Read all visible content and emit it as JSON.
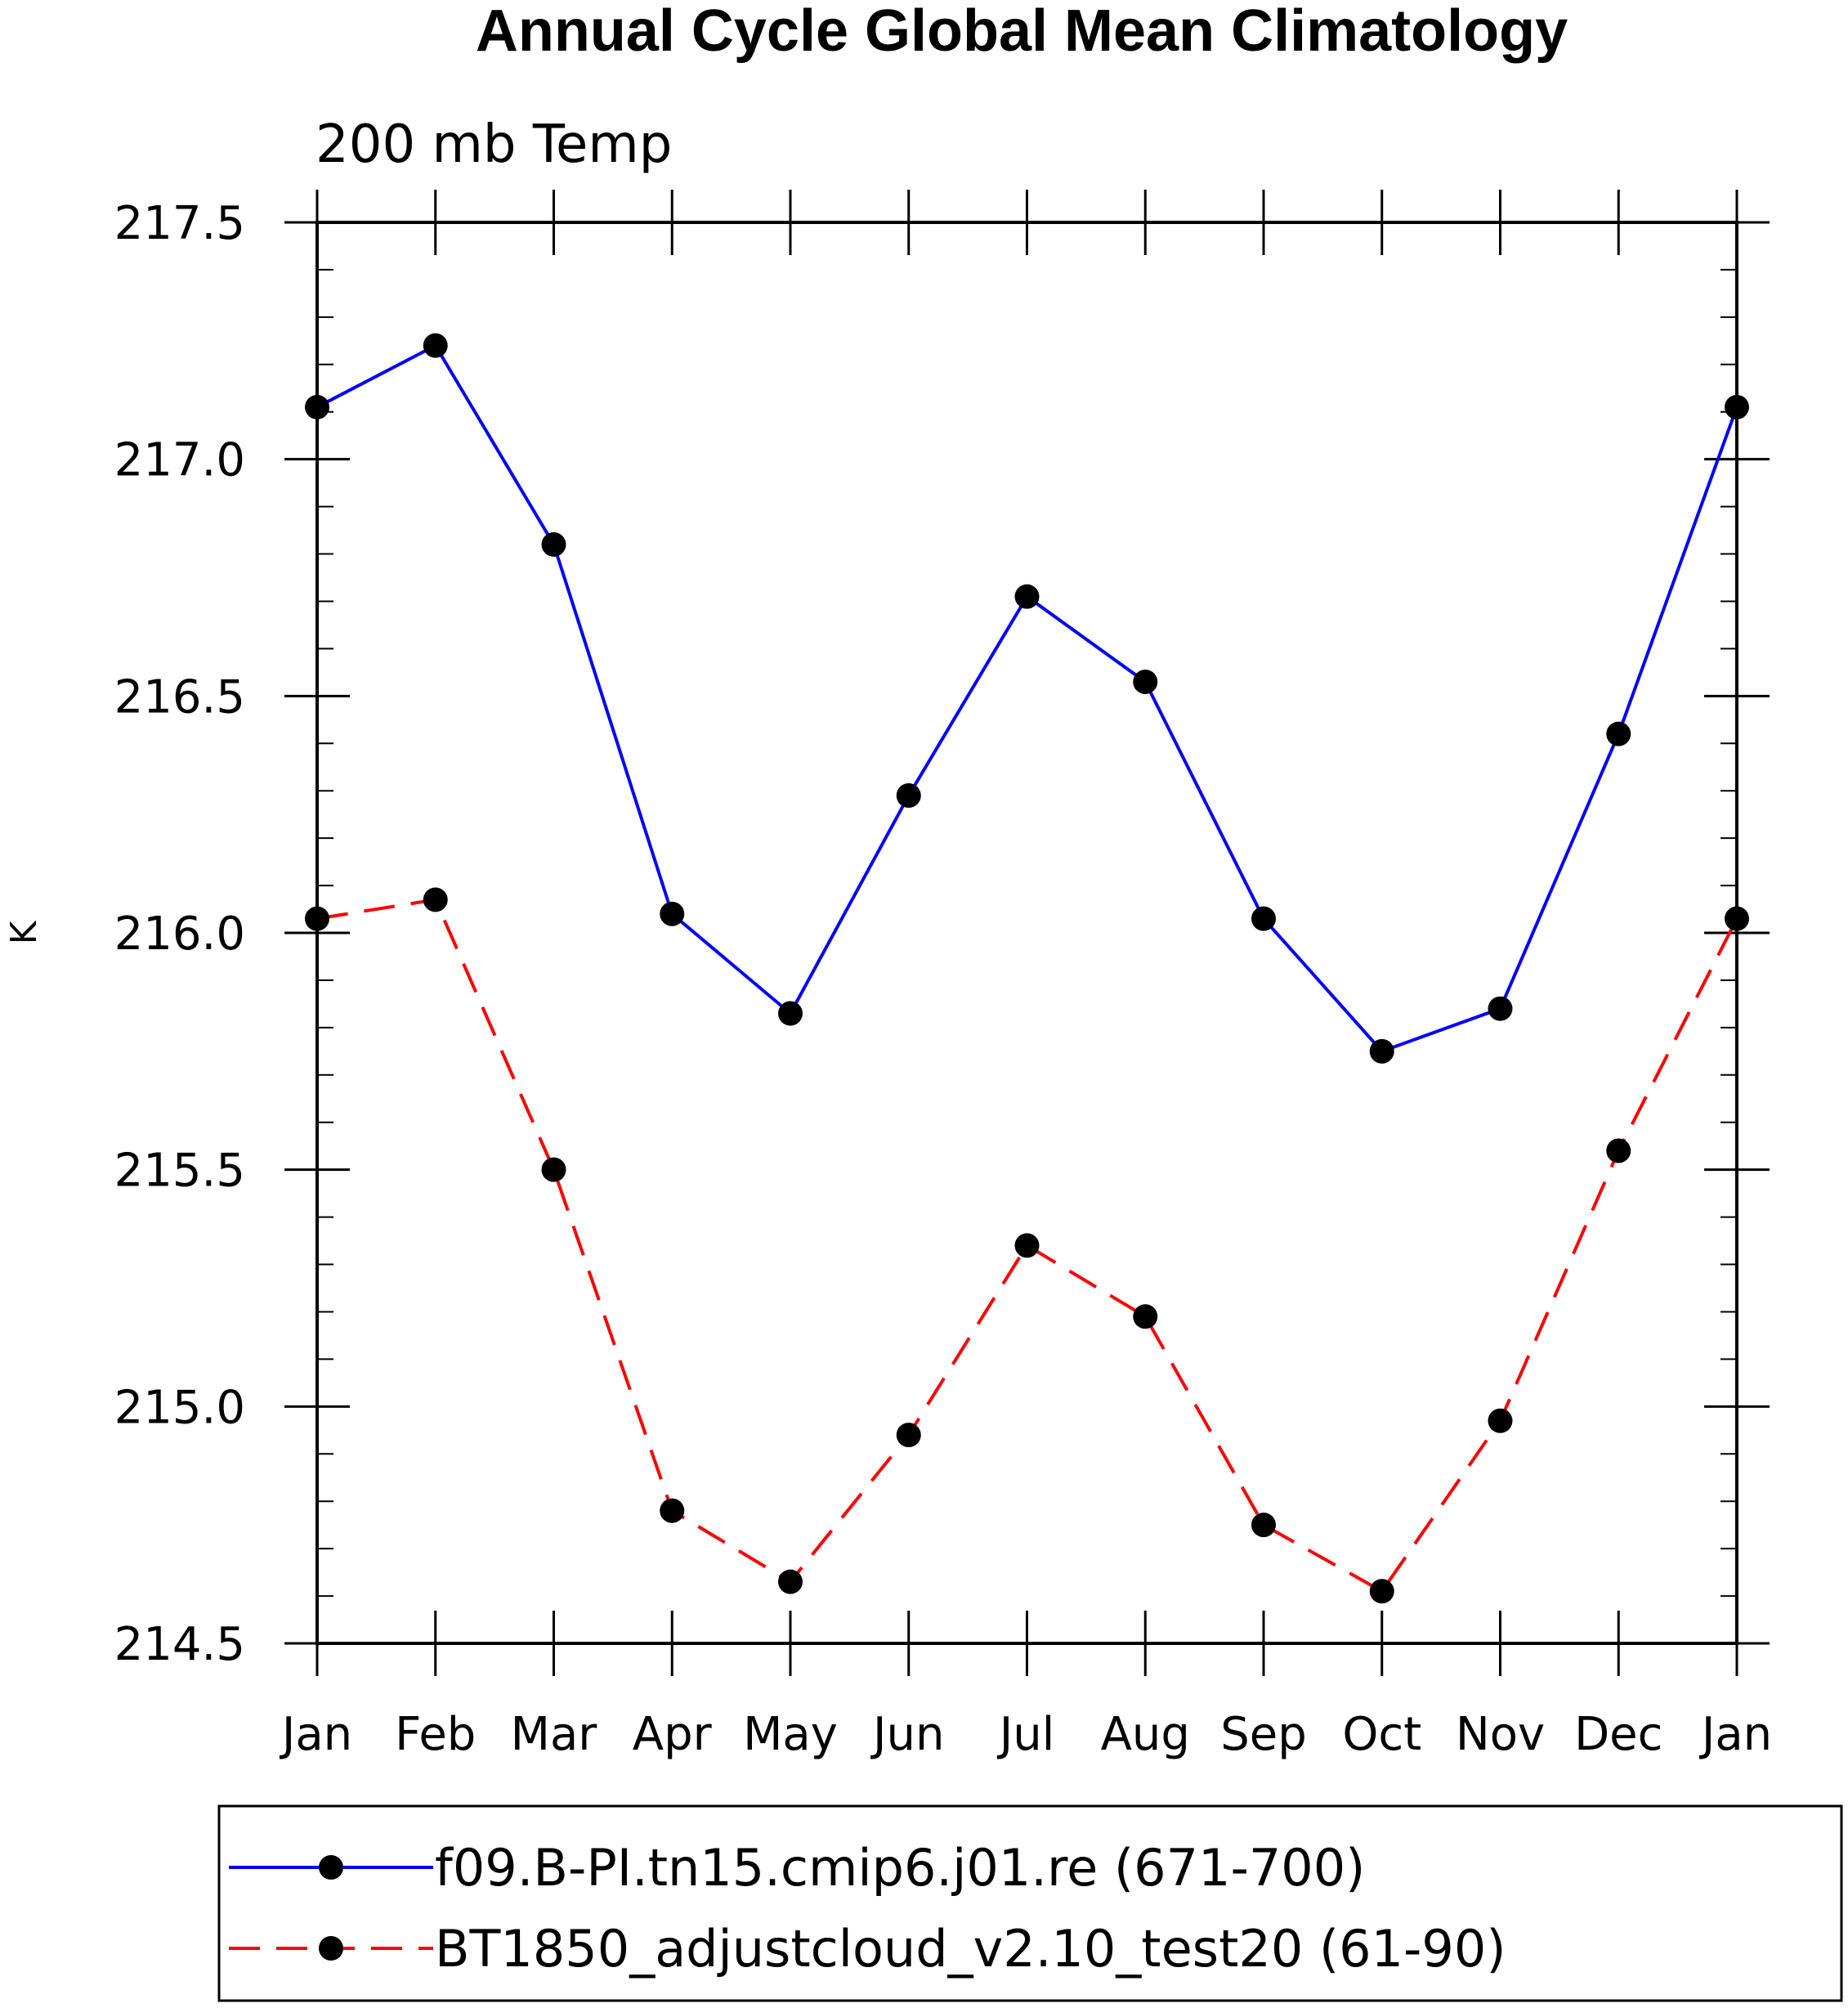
{
  "chart_data": {
    "type": "line",
    "title": "Annual Cycle Global Mean Climatology",
    "subtitle": "200 mb Temp",
    "xlabel": "",
    "ylabel": "K",
    "categories": [
      "Jan",
      "Feb",
      "Mar",
      "Apr",
      "May",
      "Jun",
      "Jul",
      "Aug",
      "Sep",
      "Oct",
      "Nov",
      "Dec",
      "Jan"
    ],
    "ylim": [
      214.5,
      217.5
    ],
    "yticks": [
      "214.5",
      "215.0",
      "215.5",
      "216.0",
      "216.5",
      "217.0",
      "217.5"
    ],
    "y_minor_step": 0.1,
    "series": [
      {
        "name": "f09.B-PI.tn15.cmip6.j01.re (671-700)",
        "color": "#0000ff",
        "dash": "solid",
        "values": [
          217.11,
          217.24,
          216.82,
          216.04,
          215.83,
          216.29,
          216.71,
          216.53,
          216.03,
          215.75,
          215.84,
          216.42,
          217.11
        ]
      },
      {
        "name": "BT1850_adjustcloud_v2.10_test20 (61-90)",
        "color": "#ff0000",
        "dash": "dashed",
        "values": [
          216.03,
          216.07,
          215.5,
          214.78,
          214.63,
          214.94,
          215.34,
          215.19,
          214.75,
          214.61,
          214.97,
          215.54,
          216.03
        ]
      }
    ],
    "marker_color": "#000000",
    "grid": false,
    "legend_position": "bottom"
  }
}
